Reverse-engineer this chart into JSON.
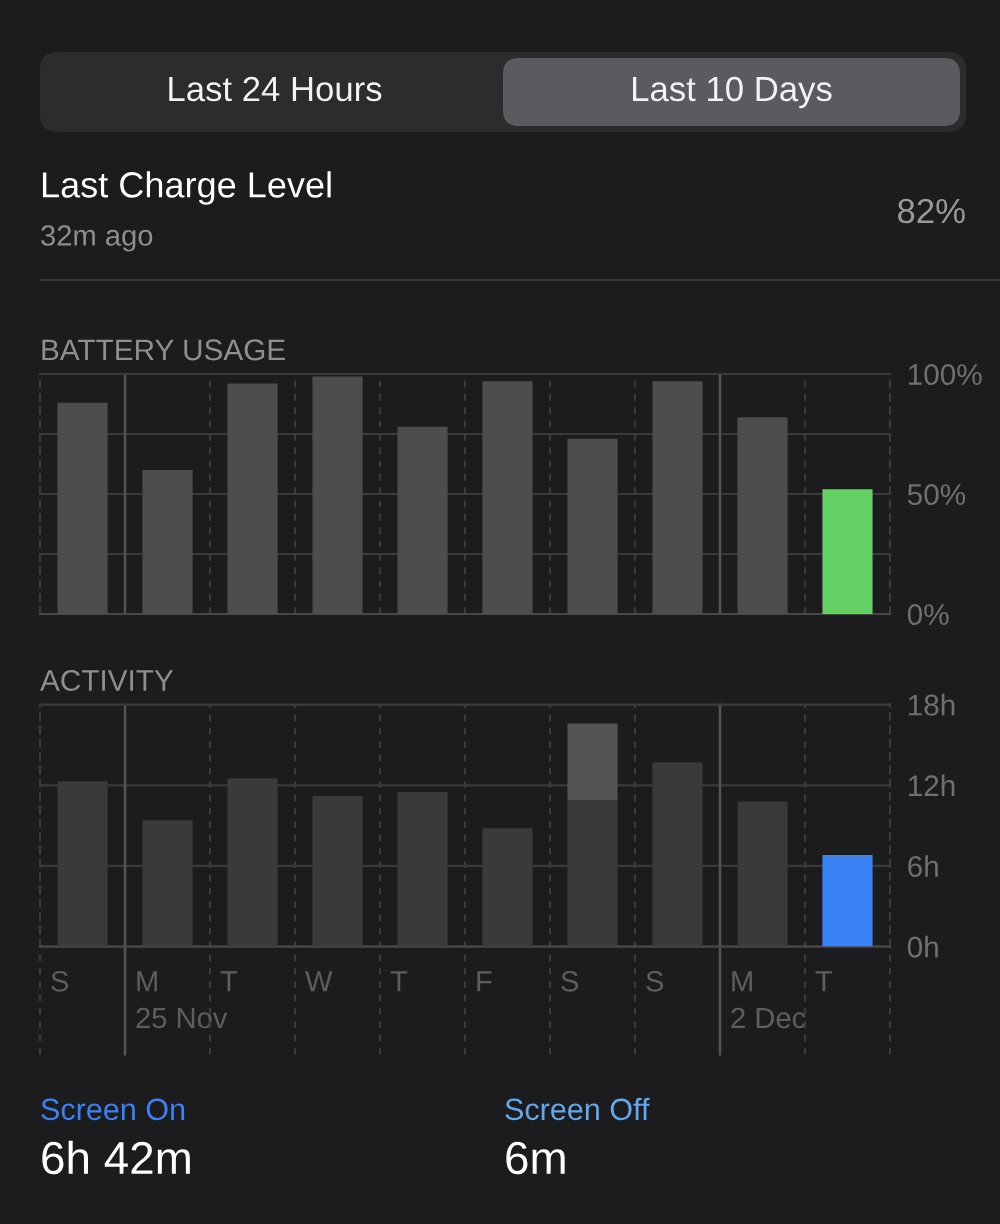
{
  "chart_data": [
    {
      "type": "bar",
      "title": "BATTERY USAGE",
      "categories": [
        null,
        null,
        null,
        null,
        null,
        null,
        null,
        null,
        null,
        null
      ],
      "values": [
        88,
        60,
        96,
        99,
        78,
        97,
        73,
        97,
        82,
        52
      ],
      "colors": [
        "#4d4d4f",
        "#4d4d4f",
        "#4d4d4f",
        "#4d4d4f",
        "#4d4d4f",
        "#4d4d4f",
        "#4d4d4f",
        "#4d4d4f",
        "#4d4d4f",
        "#65d164"
      ],
      "ylim": [
        0,
        100
      ],
      "yticks": [
        {
          "value": 0,
          "label": "0%"
        },
        {
          "value": 25,
          "label": null
        },
        {
          "value": 50,
          "label": "50%"
        },
        {
          "value": 75,
          "label": null
        },
        {
          "value": 100,
          "label": "100%"
        }
      ],
      "grid": true,
      "tick_labels": "y",
      "annotations": [
        "Last 24 Hours",
        "Last 10 Days",
        "Last Charge Level",
        "32m ago",
        "82%"
      ]
    },
    {
      "type": "bar",
      "title": "ACTIVITY",
      "categories": [
        "S",
        "M\n25 Nov",
        "T",
        "W",
        "T",
        "F",
        "S",
        "S",
        "M\n2 Dec",
        "T"
      ],
      "stacked": true,
      "series": [
        {
          "name": "Screen On",
          "values": [
            12.3,
            9.4,
            12.5,
            11.2,
            11.5,
            8.8,
            10.9,
            13.7,
            10.8,
            6.7
          ],
          "colors": [
            "#3a3a3c",
            "#3a3a3c",
            "#3a3a3c",
            "#3a3a3c",
            "#3a3a3c",
            "#3a3a3c",
            "#3a3a3c",
            "#3a3a3c",
            "#3a3a3c",
            "#3b82f6"
          ]
        },
        {
          "name": "Screen Off",
          "values": [
            0,
            0,
            0,
            0,
            0,
            0,
            5.7,
            0,
            0,
            0.1
          ],
          "colors": [
            "#545456",
            "#545456",
            "#545456",
            "#545456",
            "#545456",
            "#545456",
            "#545456",
            "#545456",
            "#545456",
            "#62a9ee"
          ]
        }
      ],
      "ylim": [
        0,
        18
      ],
      "yticks": [
        {
          "value": 0,
          "label": "0h"
        },
        {
          "value": 6,
          "label": "6h"
        },
        {
          "value": 12,
          "label": "12h"
        },
        {
          "value": 18,
          "label": "18h"
        }
      ],
      "grid": true,
      "legend": "bottom",
      "annotations": [
        "6h 42m",
        "6m"
      ]
    }
  ]
}
